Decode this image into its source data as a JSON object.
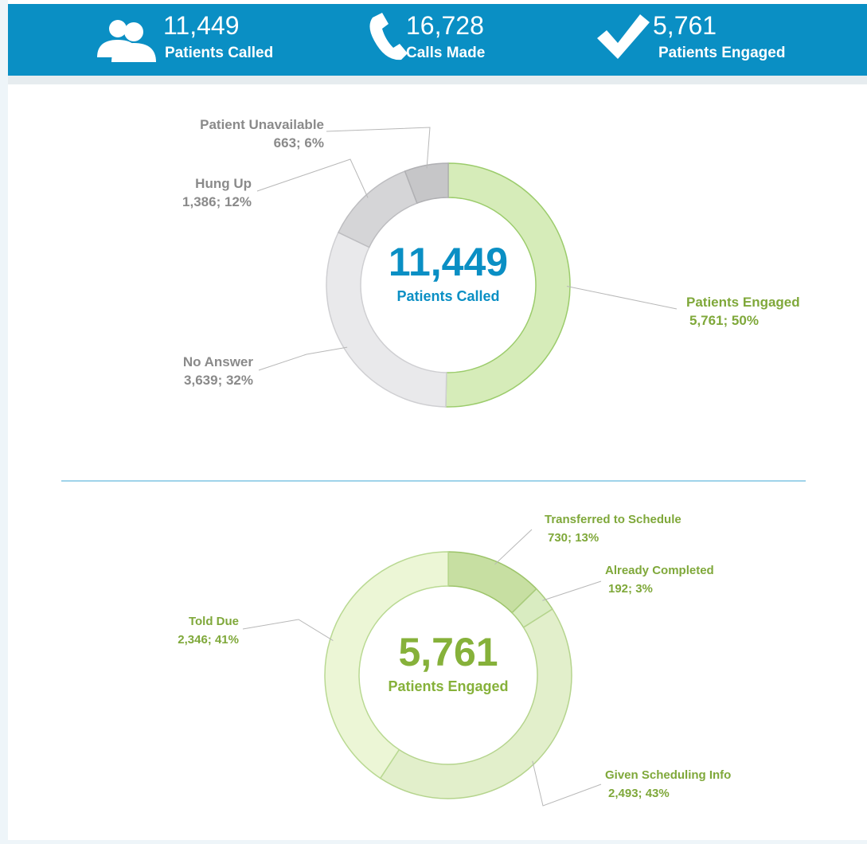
{
  "header": {
    "stats": [
      {
        "number": "11,449",
        "label": "Patients Called"
      },
      {
        "number": "16,728",
        "label": "Calls Made"
      },
      {
        "number": "5,761",
        "label": "Patients Engaged"
      }
    ]
  },
  "chart_data": [
    {
      "type": "donut",
      "center_number": "11,449",
      "center_caption": "Patients Called",
      "center_color": "#0a8fc4",
      "categories": [
        "Patients Engaged",
        "No Answer",
        "Hung Up",
        "Patient Unavailable"
      ],
      "values": [
        5761,
        3639,
        1386,
        663
      ],
      "value_labels": [
        "5,761; 50%",
        "3,639; 32%",
        "1,386; 12%",
        "663; 6%"
      ],
      "colors": [
        "#d6ecb9",
        "#e9e9eb",
        "#d5d5d7",
        "#c6c6c8"
      ],
      "label_colors": [
        "#7fa83a",
        "#8a8a8a",
        "#8a8a8a",
        "#8a8a8a"
      ]
    },
    {
      "type": "donut",
      "center_number": "5,761",
      "center_caption": "Patients Engaged",
      "center_color": "#86b13a",
      "categories": [
        "Transferred to Schedule",
        "Already Completed",
        "Given Scheduling Info",
        "Told Due"
      ],
      "values": [
        730,
        192,
        2493,
        2346
      ],
      "value_labels": [
        "730; 13%",
        "192; 3%",
        "2,493; 43%",
        "2,346; 41%"
      ],
      "colors": [
        "#c7dfa2",
        "#d9ecc1",
        "#e2efcb",
        "#ecf6d6"
      ],
      "label_colors": [
        "#7fa83a",
        "#7fa83a",
        "#7fa83a",
        "#7fa83a"
      ]
    }
  ]
}
